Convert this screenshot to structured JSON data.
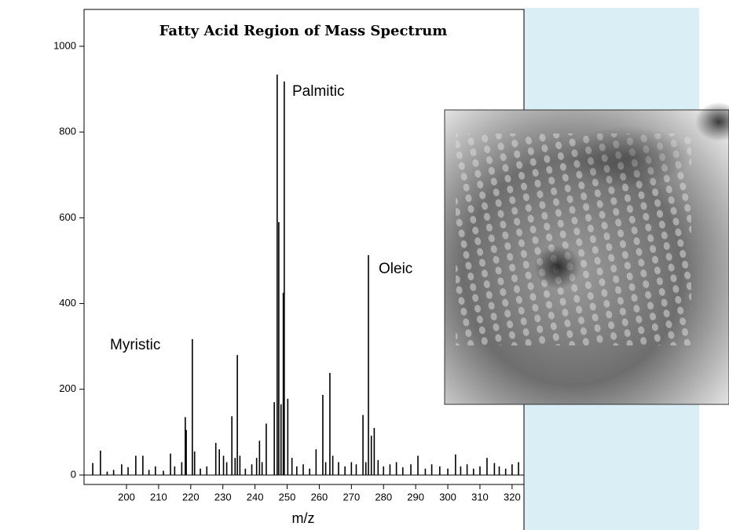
{
  "chart_data": {
    "type": "stem",
    "title": "Fatty Acid Region of Mass Spectrum",
    "x_label": "m/z",
    "annotations": [
      "Myristic",
      "Palmitic",
      "Oleic"
    ],
    "color": "#000000",
    "x": [
      189.5,
      191.9,
      194,
      196,
      198.5,
      200.5,
      202.9,
      205.1,
      207,
      209,
      211.5,
      213.7,
      215,
      217.2,
      218.3,
      218.6,
      220.5,
      221.2,
      223,
      225,
      227.8,
      228.9,
      230.2,
      231.2,
      232.8,
      233.8,
      234.5,
      235.3,
      237,
      239,
      240.5,
      241.4,
      242.2,
      243.5,
      246,
      246.9,
      247.4,
      248.1,
      248.8,
      249.1,
      250.2,
      251.5,
      253,
      255,
      257,
      259,
      261.1,
      262,
      263.3,
      264.2,
      266,
      268,
      270,
      271.5,
      273.6,
      274.5,
      275.3,
      276.2,
      277.1,
      278.3,
      280,
      282,
      284,
      286,
      288.5,
      290.7,
      293,
      295,
      297.5,
      300,
      302.4,
      304,
      306,
      308,
      310,
      312.2,
      314.5,
      316,
      318,
      320,
      322
    ],
    "values": [
      28,
      57,
      8,
      12,
      25,
      18,
      45,
      45,
      12,
      20,
      10,
      50,
      20,
      30,
      135,
      105,
      317,
      55,
      15,
      20,
      75,
      60,
      45,
      30,
      137,
      40,
      280,
      45,
      15,
      25,
      40,
      80,
      30,
      120,
      170,
      934,
      590,
      165,
      425,
      918,
      178,
      40,
      20,
      25,
      15,
      60,
      187,
      30,
      238,
      45,
      30,
      20,
      30,
      25,
      140,
      30,
      513,
      92,
      110,
      35,
      20,
      25,
      30,
      18,
      25,
      45,
      15,
      25,
      20,
      15,
      48,
      20,
      25,
      15,
      20,
      40,
      28,
      20,
      15,
      25,
      30
    ],
    "xlim": [
      186.8,
      323.7
    ],
    "ylim": [
      -22,
      1086
    ],
    "xticks": [
      200,
      210,
      220,
      230,
      240,
      250,
      260,
      270,
      280,
      290,
      300,
      310,
      320
    ],
    "yticks": [
      0,
      200,
      400,
      600,
      800,
      1000
    ]
  }
}
